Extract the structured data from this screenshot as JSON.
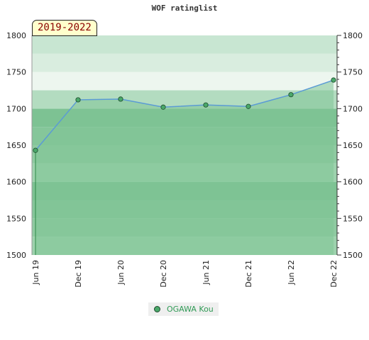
{
  "chart_data": {
    "type": "area",
    "title": "WOF ratinglist",
    "period_label": "2019-2022",
    "x_labels": [
      "Jun 19",
      "Dec 19",
      "Jun 20",
      "Dec 20",
      "Jun 21",
      "Dec 21",
      "Jun 22",
      "Dec 22"
    ],
    "series": [
      {
        "name": "OGAWA Kou",
        "values": [
          1643,
          1712,
          1713,
          1702,
          1705,
          1703,
          1719,
          1739
        ]
      }
    ],
    "ylim": [
      1500,
      1800
    ],
    "y_ticks": [
      1500,
      1550,
      1600,
      1650,
      1700,
      1750,
      1800
    ],
    "y_axis_both_sides": true,
    "legend_position": "bottom-center",
    "colors": {
      "area": "#7fc495",
      "line": "#5b9bd5",
      "marker": "#4aa86a",
      "accent_label": "#8b0000"
    }
  }
}
